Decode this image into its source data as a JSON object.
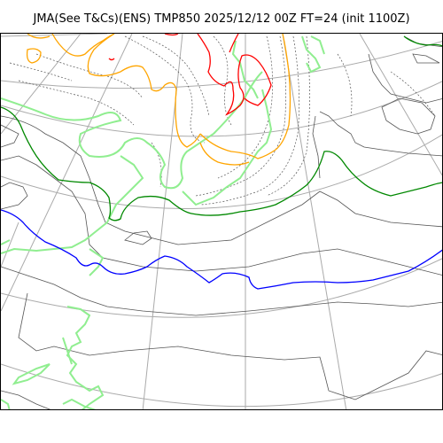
{
  "title": "JMA(See T&Cs)(ENS) TMP850 2025/12/12 00Z FT=24 (init 1100Z)",
  "map": {
    "variable": "TMP850",
    "contour_colors": {
      "coastline": "#555555",
      "graticule": "#aaaaaa",
      "blue_isotherm": "#0000ff",
      "green_isotherm": "#008800",
      "orange_isotherm": "#ffa500",
      "red_isotherm": "#ff0000",
      "light_green_isotherm": "#90ee90",
      "dotted_isotherm": "#555555"
    }
  }
}
